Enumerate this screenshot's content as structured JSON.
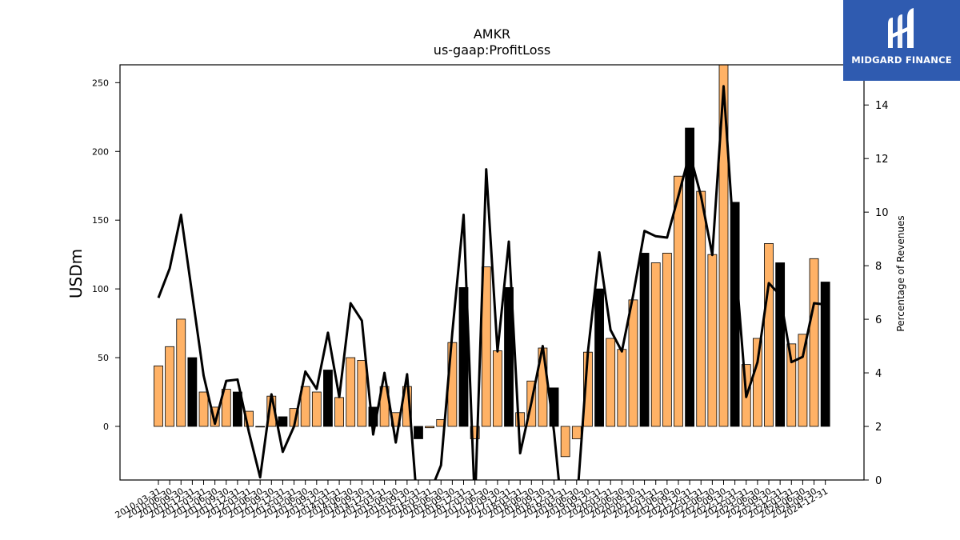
{
  "chart_data": {
    "type": "bar",
    "title": "AMKR",
    "subtitle": "us-gaap:ProfitLoss",
    "ylabel": "USDm",
    "y2label": "Percentage of Revenues",
    "ylim": [
      -39,
      263
    ],
    "y2lim": [
      0,
      15.5
    ],
    "yticks": [
      0,
      50,
      100,
      150,
      200,
      250
    ],
    "y2ticks": [
      0,
      2,
      4,
      6,
      8,
      10,
      12,
      14
    ],
    "categories": [
      "2010-03-31",
      "2010-06-30",
      "2010-09-30",
      "2010-12-31",
      "2011-03-31",
      "2011-06-30",
      "2011-09-30",
      "2011-12-31",
      "2012-03-31",
      "2012-06-30",
      "2012-09-30",
      "2012-12-31",
      "2013-03-31",
      "2013-06-30",
      "2013-09-30",
      "2013-12-31",
      "2014-03-31",
      "2014-06-30",
      "2014-09-30",
      "2014-12-31",
      "2015-03-31",
      "2015-06-30",
      "2015-09-30",
      "2015-12-31",
      "2016-03-31",
      "2016-06-30",
      "2016-09-30",
      "2016-12-31",
      "2017-03-31",
      "2017-06-30",
      "2017-09-30",
      "2017-12-31",
      "2018-03-31",
      "2018-06-30",
      "2018-09-30",
      "2018-12-31",
      "2019-03-31",
      "2019-06-30",
      "2019-09-30",
      "2019-12-31",
      "2020-03-31",
      "2020-06-30",
      "2020-09-30",
      "2020-12-31",
      "2021-03-31",
      "2021-06-30",
      "2021-09-30",
      "2021-12-31",
      "2022-03-31",
      "2022-06-30",
      "2022-09-30",
      "2022-12-31",
      "2023-03-31",
      "2023-06-30",
      "2023-09-30",
      "2023-12-31",
      "2024-03-31",
      "2024-06-30",
      "2024-09-30",
      "2024-12-31"
    ],
    "xtick_labels": [
      "2010-03-31",
      "2010-06-30",
      "2010-09-30",
      "2010-12-31",
      "2011-03-31",
      "2011-06-30",
      "2011-09-30",
      "2011-12-31",
      "2012-03-31",
      "2012-06-30",
      "2012-09-30",
      "2012-12-31",
      "2013-03-31",
      "2013-06-30",
      "2013-09-30",
      "2013-12-31",
      "2014-03-31",
      "2014-06-30",
      "2014-09-30",
      "2014-12-31",
      "2015-03-31",
      "2015-06-30",
      "2015-09-30",
      "2015-12-31",
      "2016-03-31",
      "2016-06-30",
      "2016-09-30",
      "2016-12-31",
      "2017-03-31",
      "2017-06-30",
      "2017-09-30",
      "2017-12-31",
      "2018-03-31",
      "2018-06-30",
      "2018-09-30",
      "2018-12-31",
      "2019-03-31",
      "2019-06-30",
      "2019-09-30",
      "2019-12-31",
      "2020-03-31",
      "2020-06-30",
      "2020-09-30",
      "2020-12-31",
      "2021-03-31",
      "2021-06-30",
      "2021-09-30",
      "2021-12-31",
      "2022-03-31",
      "2022-06-30",
      "2022-09-30",
      "2022-12-31",
      "2023-03-31",
      "2023-06-30",
      "2023-09-30",
      "2023-12-31",
      "2024-03-31",
      "2024-06-30",
      "2024-09-30",
      "2024-12-31"
    ],
    "series": [
      {
        "type": "bar",
        "axis": "left",
        "values": [
          44,
          58,
          78,
          50,
          25,
          14,
          27,
          25,
          11,
          0,
          22,
          7,
          13,
          29,
          25,
          41,
          21,
          50,
          48,
          14,
          29,
          10,
          29,
          -9,
          -1,
          5,
          61,
          101,
          -9,
          116,
          55,
          101,
          10,
          33,
          57,
          28,
          -22,
          -9,
          54,
          100,
          64,
          56,
          92,
          126,
          119,
          126,
          182,
          217,
          171,
          125,
          263,
          163,
          45,
          64,
          133,
          119,
          60,
          67,
          122,
          105
        ]
      },
      {
        "type": "line",
        "axis": "right",
        "values": [
          6.8,
          7.9,
          9.9,
          6.9,
          3.9,
          2.1,
          3.7,
          3.75,
          1.8,
          0.1,
          3.2,
          1.05,
          2.0,
          4.05,
          3.4,
          5.5,
          3.1,
          6.6,
          5.95,
          1.7,
          4.0,
          1.4,
          3.95,
          -1.5,
          -0.5,
          0.55,
          5.5,
          9.9,
          -1.0,
          11.6,
          4.8,
          8.9,
          1.0,
          2.9,
          5.0,
          1.8,
          -2.5,
          -1.0,
          4.8,
          8.5,
          5.6,
          4.8,
          6.9,
          9.3,
          9.1,
          9.05,
          10.6,
          12.2,
          10.6,
          8.4,
          14.7,
          8.4,
          3.1,
          4.4,
          7.35,
          6.9,
          4.4,
          4.6,
          6.6,
          6.55
        ]
      }
    ],
    "bar_colors": [
      "#ffb266",
      "#ffb266",
      "#ffb266",
      "#000000",
      "#ffb266",
      "#ffb266",
      "#ffb266",
      "#000000",
      "#ffb266",
      "#ffb266",
      "#ffb266",
      "#000000",
      "#ffb266",
      "#ffb266",
      "#ffb266",
      "#000000",
      "#ffb266",
      "#ffb266",
      "#ffb266",
      "#000000",
      "#ffb266",
      "#ffb266",
      "#ffb266",
      "#000000",
      "#ffb266",
      "#ffb266",
      "#ffb266",
      "#000000",
      "#ffb266",
      "#ffb266",
      "#ffb266",
      "#000000",
      "#ffb266",
      "#ffb266",
      "#ffb266",
      "#000000",
      "#ffb266",
      "#ffb266",
      "#ffb266",
      "#000000",
      "#ffb266",
      "#ffb266",
      "#ffb266",
      "#000000",
      "#ffb266",
      "#ffb266",
      "#ffb266",
      "#000000",
      "#ffb266",
      "#ffb266",
      "#ffb266",
      "#000000",
      "#ffb266",
      "#ffb266",
      "#ffb266",
      "#000000",
      "#ffb266",
      "#ffb266",
      "#ffb266",
      "#000000"
    ],
    "line_color": "#000000",
    "grid": false,
    "legend": "none"
  },
  "logo": {
    "text": "MIDGARD FINANCE",
    "background": "#2f5bb0",
    "color": "#ffffff"
  }
}
